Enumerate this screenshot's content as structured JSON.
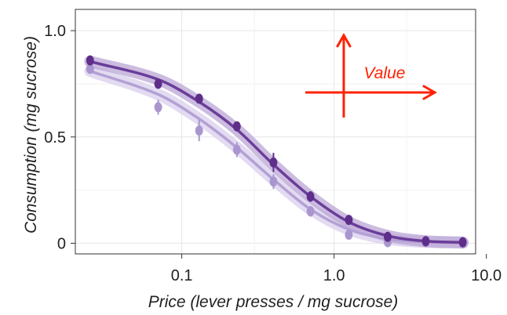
{
  "chart_data": {
    "type": "line",
    "xlabel": "Price (lever presses / mg sucrose)",
    "ylabel": "Consumption (mg sucrose)",
    "x_scale": "log",
    "xlim": [
      0.02,
      8.5
    ],
    "ylim": [
      -0.05,
      1.1
    ],
    "x_ticks": [
      {
        "value": 0.1,
        "label": "0.1"
      },
      {
        "value": 1.0,
        "label": "1.0"
      },
      {
        "value": 10.0,
        "label": "10.0"
      }
    ],
    "y_ticks": [
      {
        "value": 0,
        "label": "0"
      },
      {
        "value": 0.5,
        "label": "0.5"
      },
      {
        "value": 1.0,
        "label": "1.0"
      }
    ],
    "grid": true,
    "legend": "none",
    "x": [
      0.025,
      0.07,
      0.13,
      0.23,
      0.4,
      0.7,
      1.25,
      2.25,
      4.0,
      7.0
    ],
    "series": [
      {
        "color": "#6b3d99",
        "marker_color": "#5e2e8a",
        "band_color": "#b9a6d6",
        "values": [
          0.86,
          0.75,
          0.68,
          0.55,
          0.38,
          0.22,
          0.11,
          0.03,
          0.01,
          0.005
        ],
        "errors": [
          0.015,
          0.02,
          0.015,
          0.015,
          0.045,
          0.025,
          0.015,
          0.01,
          0.005,
          0.005
        ],
        "fit": [
          0.855,
          0.77,
          0.665,
          0.535,
          0.37,
          0.22,
          0.1,
          0.035,
          0.01,
          0.004
        ]
      },
      {
        "color": "#b3a0d4",
        "marker_color": "#a996cf",
        "band_color": "#d9cfee",
        "values": [
          0.82,
          0.64,
          0.53,
          0.44,
          0.29,
          0.15,
          0.04,
          0.005,
          0.005,
          0.0
        ],
        "errors": [
          0.02,
          0.035,
          0.05,
          0.035,
          0.035,
          0.025,
          0.02,
          0.01,
          0.005,
          0.005
        ],
        "fit": [
          0.81,
          0.7,
          0.585,
          0.45,
          0.3,
          0.16,
          0.065,
          0.02,
          0.006,
          0.002
        ]
      }
    ],
    "annotation": {
      "text": "Value",
      "color": "#ff2200",
      "arrow_directions": [
        "up",
        "right"
      ]
    }
  }
}
